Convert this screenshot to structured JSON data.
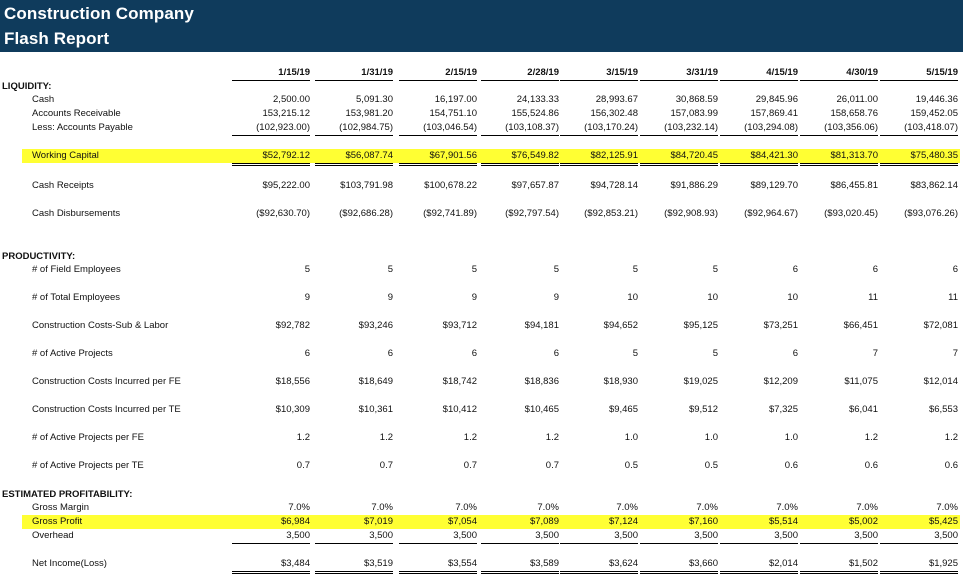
{
  "report": {
    "title_line1": "Construction Company",
    "title_line2": "Flash Report",
    "highlight_color": "#ffff33",
    "header_color": "#0f3b5c"
  },
  "dates": [
    "1/15/19",
    "1/31/19",
    "2/15/19",
    "2/28/19",
    "3/15/19",
    "3/31/19",
    "4/15/19",
    "4/30/19",
    "5/15/19"
  ],
  "sections": {
    "liquidity": "LIQUIDITY:",
    "productivity": "PRODUCTIVITY:",
    "profitability": "ESTIMATED PROFITABILITY:"
  },
  "rows": {
    "cash": {
      "label": "Cash",
      "values": [
        "2,500.00",
        "5,091.30",
        "16,197.00",
        "24,133.33",
        "28,993.67",
        "30,868.59",
        "29,845.96",
        "26,011.00",
        "19,446.36"
      ]
    },
    "ar": {
      "label": "Accounts Receivable",
      "values": [
        "153,215.12",
        "153,981.20",
        "154,751.10",
        "155,524.86",
        "156,302.48",
        "157,083.99",
        "157,869.41",
        "158,658.76",
        "159,452.05"
      ]
    },
    "ap": {
      "label": "Less:  Accounts Payable",
      "values": [
        "(102,923.00)",
        "(102,984.75)",
        "(103,046.54)",
        "(103,108.37)",
        "(103,170.24)",
        "(103,232.14)",
        "(103,294.08)",
        "(103,356.06)",
        "(103,418.07)"
      ]
    },
    "wc": {
      "label": "Working Capital",
      "values": [
        "$52,792.12",
        "$56,087.74",
        "$67,901.56",
        "$76,549.82",
        "$82,125.91",
        "$84,720.45",
        "$84,421.30",
        "$81,313.70",
        "$75,480.35"
      ]
    },
    "receipts": {
      "label": "Cash Receipts",
      "values": [
        "$95,222.00",
        "$103,791.98",
        "$100,678.22",
        "$97,657.87",
        "$94,728.14",
        "$91,886.29",
        "$89,129.70",
        "$86,455.81",
        "$83,862.14"
      ]
    },
    "disb": {
      "label": "Cash Disbursements",
      "values": [
        "($92,630.70)",
        "($92,686.28)",
        "($92,741.89)",
        "($92,797.54)",
        "($92,853.21)",
        "($92,908.93)",
        "($92,964.67)",
        "($93,020.45)",
        "($93,076.26)"
      ]
    },
    "fe": {
      "label": "# of Field Employees",
      "values": [
        "5",
        "5",
        "5",
        "5",
        "5",
        "5",
        "6",
        "6",
        "6"
      ]
    },
    "te": {
      "label": "# of Total Employees",
      "values": [
        "9",
        "9",
        "9",
        "9",
        "10",
        "10",
        "10",
        "11",
        "11"
      ]
    },
    "costs": {
      "label": "Construction Costs-Sub & Labor",
      "values": [
        "$92,782",
        "$93,246",
        "$93,712",
        "$94,181",
        "$94,652",
        "$95,125",
        "$73,251",
        "$66,451",
        "$72,081"
      ]
    },
    "projects": {
      "label": "# of Active Projects",
      "values": [
        "6",
        "6",
        "6",
        "6",
        "5",
        "5",
        "6",
        "7",
        "7"
      ]
    },
    "cost_fe": {
      "label": "Construction Costs Incurred per FE",
      "values": [
        "$18,556",
        "$18,649",
        "$18,742",
        "$18,836",
        "$18,930",
        "$19,025",
        "$12,209",
        "$11,075",
        "$12,014"
      ]
    },
    "cost_te": {
      "label": "Construction Costs Incurred per TE",
      "values": [
        "$10,309",
        "$10,361",
        "$10,412",
        "$10,465",
        "$9,465",
        "$9,512",
        "$7,325",
        "$6,041",
        "$6,553"
      ]
    },
    "proj_fe": {
      "label": "# of Active Projects per FE",
      "values": [
        "1.2",
        "1.2",
        "1.2",
        "1.2",
        "1.0",
        "1.0",
        "1.0",
        "1.2",
        "1.2"
      ]
    },
    "proj_te": {
      "label": "# of Active Projects per TE",
      "values": [
        "0.7",
        "0.7",
        "0.7",
        "0.7",
        "0.5",
        "0.5",
        "0.6",
        "0.6",
        "0.6"
      ]
    },
    "gm": {
      "label": "Gross Margin",
      "values": [
        "7.0%",
        "7.0%",
        "7.0%",
        "7.0%",
        "7.0%",
        "7.0%",
        "7.0%",
        "7.0%",
        "7.0%"
      ]
    },
    "gp": {
      "label": "Gross Profit",
      "values": [
        "$6,984",
        "$7,019",
        "$7,054",
        "$7,089",
        "$7,124",
        "$7,160",
        "$5,514",
        "$5,002",
        "$5,425"
      ]
    },
    "overhead": {
      "label": "Overhead",
      "values": [
        "3,500",
        "3,500",
        "3,500",
        "3,500",
        "3,500",
        "3,500",
        "3,500",
        "3,500",
        "3,500"
      ]
    },
    "net": {
      "label": "Net Income(Loss)",
      "values": [
        "$3,484",
        "$3,519",
        "$3,554",
        "$3,589",
        "$3,624",
        "$3,660",
        "$2,014",
        "$1,502",
        "$1,925"
      ]
    }
  }
}
